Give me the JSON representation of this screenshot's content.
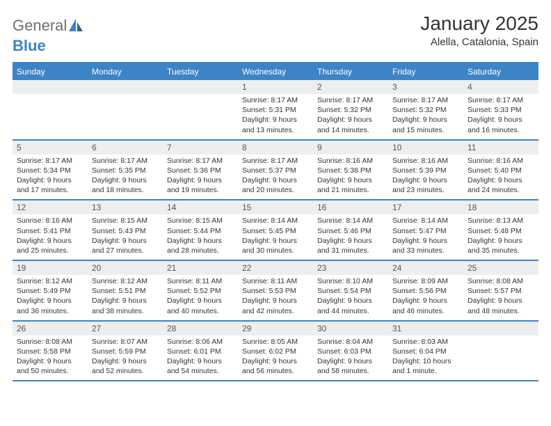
{
  "logo": {
    "text1": "General",
    "text2": "Blue"
  },
  "title": "January 2025",
  "location": "Alella, Catalonia, Spain",
  "colors": {
    "accent": "#3c84c6",
    "header_bg": "#eceeef",
    "text": "#333333",
    "logo_gray": "#6e6e6e",
    "background": "#ffffff"
  },
  "calendar": {
    "type": "table",
    "columns": [
      "Sunday",
      "Monday",
      "Tuesday",
      "Wednesday",
      "Thursday",
      "Friday",
      "Saturday"
    ],
    "weeks": [
      [
        {
          "num": "",
          "sunrise": "",
          "sunset": "",
          "daylight": ""
        },
        {
          "num": "",
          "sunrise": "",
          "sunset": "",
          "daylight": ""
        },
        {
          "num": "",
          "sunrise": "",
          "sunset": "",
          "daylight": ""
        },
        {
          "num": "1",
          "sunrise": "Sunrise: 8:17 AM",
          "sunset": "Sunset: 5:31 PM",
          "daylight": "Daylight: 9 hours and 13 minutes."
        },
        {
          "num": "2",
          "sunrise": "Sunrise: 8:17 AM",
          "sunset": "Sunset: 5:32 PM",
          "daylight": "Daylight: 9 hours and 14 minutes."
        },
        {
          "num": "3",
          "sunrise": "Sunrise: 8:17 AM",
          "sunset": "Sunset: 5:32 PM",
          "daylight": "Daylight: 9 hours and 15 minutes."
        },
        {
          "num": "4",
          "sunrise": "Sunrise: 8:17 AM",
          "sunset": "Sunset: 5:33 PM",
          "daylight": "Daylight: 9 hours and 16 minutes."
        }
      ],
      [
        {
          "num": "5",
          "sunrise": "Sunrise: 8:17 AM",
          "sunset": "Sunset: 5:34 PM",
          "daylight": "Daylight: 9 hours and 17 minutes."
        },
        {
          "num": "6",
          "sunrise": "Sunrise: 8:17 AM",
          "sunset": "Sunset: 5:35 PM",
          "daylight": "Daylight: 9 hours and 18 minutes."
        },
        {
          "num": "7",
          "sunrise": "Sunrise: 8:17 AM",
          "sunset": "Sunset: 5:36 PM",
          "daylight": "Daylight: 9 hours and 19 minutes."
        },
        {
          "num": "8",
          "sunrise": "Sunrise: 8:17 AM",
          "sunset": "Sunset: 5:37 PM",
          "daylight": "Daylight: 9 hours and 20 minutes."
        },
        {
          "num": "9",
          "sunrise": "Sunrise: 8:16 AM",
          "sunset": "Sunset: 5:38 PM",
          "daylight": "Daylight: 9 hours and 21 minutes."
        },
        {
          "num": "10",
          "sunrise": "Sunrise: 8:16 AM",
          "sunset": "Sunset: 5:39 PM",
          "daylight": "Daylight: 9 hours and 23 minutes."
        },
        {
          "num": "11",
          "sunrise": "Sunrise: 8:16 AM",
          "sunset": "Sunset: 5:40 PM",
          "daylight": "Daylight: 9 hours and 24 minutes."
        }
      ],
      [
        {
          "num": "12",
          "sunrise": "Sunrise: 8:16 AM",
          "sunset": "Sunset: 5:41 PM",
          "daylight": "Daylight: 9 hours and 25 minutes."
        },
        {
          "num": "13",
          "sunrise": "Sunrise: 8:15 AM",
          "sunset": "Sunset: 5:43 PM",
          "daylight": "Daylight: 9 hours and 27 minutes."
        },
        {
          "num": "14",
          "sunrise": "Sunrise: 8:15 AM",
          "sunset": "Sunset: 5:44 PM",
          "daylight": "Daylight: 9 hours and 28 minutes."
        },
        {
          "num": "15",
          "sunrise": "Sunrise: 8:14 AM",
          "sunset": "Sunset: 5:45 PM",
          "daylight": "Daylight: 9 hours and 30 minutes."
        },
        {
          "num": "16",
          "sunrise": "Sunrise: 8:14 AM",
          "sunset": "Sunset: 5:46 PM",
          "daylight": "Daylight: 9 hours and 31 minutes."
        },
        {
          "num": "17",
          "sunrise": "Sunrise: 8:14 AM",
          "sunset": "Sunset: 5:47 PM",
          "daylight": "Daylight: 9 hours and 33 minutes."
        },
        {
          "num": "18",
          "sunrise": "Sunrise: 8:13 AM",
          "sunset": "Sunset: 5:48 PM",
          "daylight": "Daylight: 9 hours and 35 minutes."
        }
      ],
      [
        {
          "num": "19",
          "sunrise": "Sunrise: 8:12 AM",
          "sunset": "Sunset: 5:49 PM",
          "daylight": "Daylight: 9 hours and 36 minutes."
        },
        {
          "num": "20",
          "sunrise": "Sunrise: 8:12 AM",
          "sunset": "Sunset: 5:51 PM",
          "daylight": "Daylight: 9 hours and 38 minutes."
        },
        {
          "num": "21",
          "sunrise": "Sunrise: 8:11 AM",
          "sunset": "Sunset: 5:52 PM",
          "daylight": "Daylight: 9 hours and 40 minutes."
        },
        {
          "num": "22",
          "sunrise": "Sunrise: 8:11 AM",
          "sunset": "Sunset: 5:53 PM",
          "daylight": "Daylight: 9 hours and 42 minutes."
        },
        {
          "num": "23",
          "sunrise": "Sunrise: 8:10 AM",
          "sunset": "Sunset: 5:54 PM",
          "daylight": "Daylight: 9 hours and 44 minutes."
        },
        {
          "num": "24",
          "sunrise": "Sunrise: 8:09 AM",
          "sunset": "Sunset: 5:56 PM",
          "daylight": "Daylight: 9 hours and 46 minutes."
        },
        {
          "num": "25",
          "sunrise": "Sunrise: 8:08 AM",
          "sunset": "Sunset: 5:57 PM",
          "daylight": "Daylight: 9 hours and 48 minutes."
        }
      ],
      [
        {
          "num": "26",
          "sunrise": "Sunrise: 8:08 AM",
          "sunset": "Sunset: 5:58 PM",
          "daylight": "Daylight: 9 hours and 50 minutes."
        },
        {
          "num": "27",
          "sunrise": "Sunrise: 8:07 AM",
          "sunset": "Sunset: 5:59 PM",
          "daylight": "Daylight: 9 hours and 52 minutes."
        },
        {
          "num": "28",
          "sunrise": "Sunrise: 8:06 AM",
          "sunset": "Sunset: 6:01 PM",
          "daylight": "Daylight: 9 hours and 54 minutes."
        },
        {
          "num": "29",
          "sunrise": "Sunrise: 8:05 AM",
          "sunset": "Sunset: 6:02 PM",
          "daylight": "Daylight: 9 hours and 56 minutes."
        },
        {
          "num": "30",
          "sunrise": "Sunrise: 8:04 AM",
          "sunset": "Sunset: 6:03 PM",
          "daylight": "Daylight: 9 hours and 58 minutes."
        },
        {
          "num": "31",
          "sunrise": "Sunrise: 8:03 AM",
          "sunset": "Sunset: 6:04 PM",
          "daylight": "Daylight: 10 hours and 1 minute."
        },
        {
          "num": "",
          "sunrise": "",
          "sunset": "",
          "daylight": ""
        }
      ]
    ]
  }
}
